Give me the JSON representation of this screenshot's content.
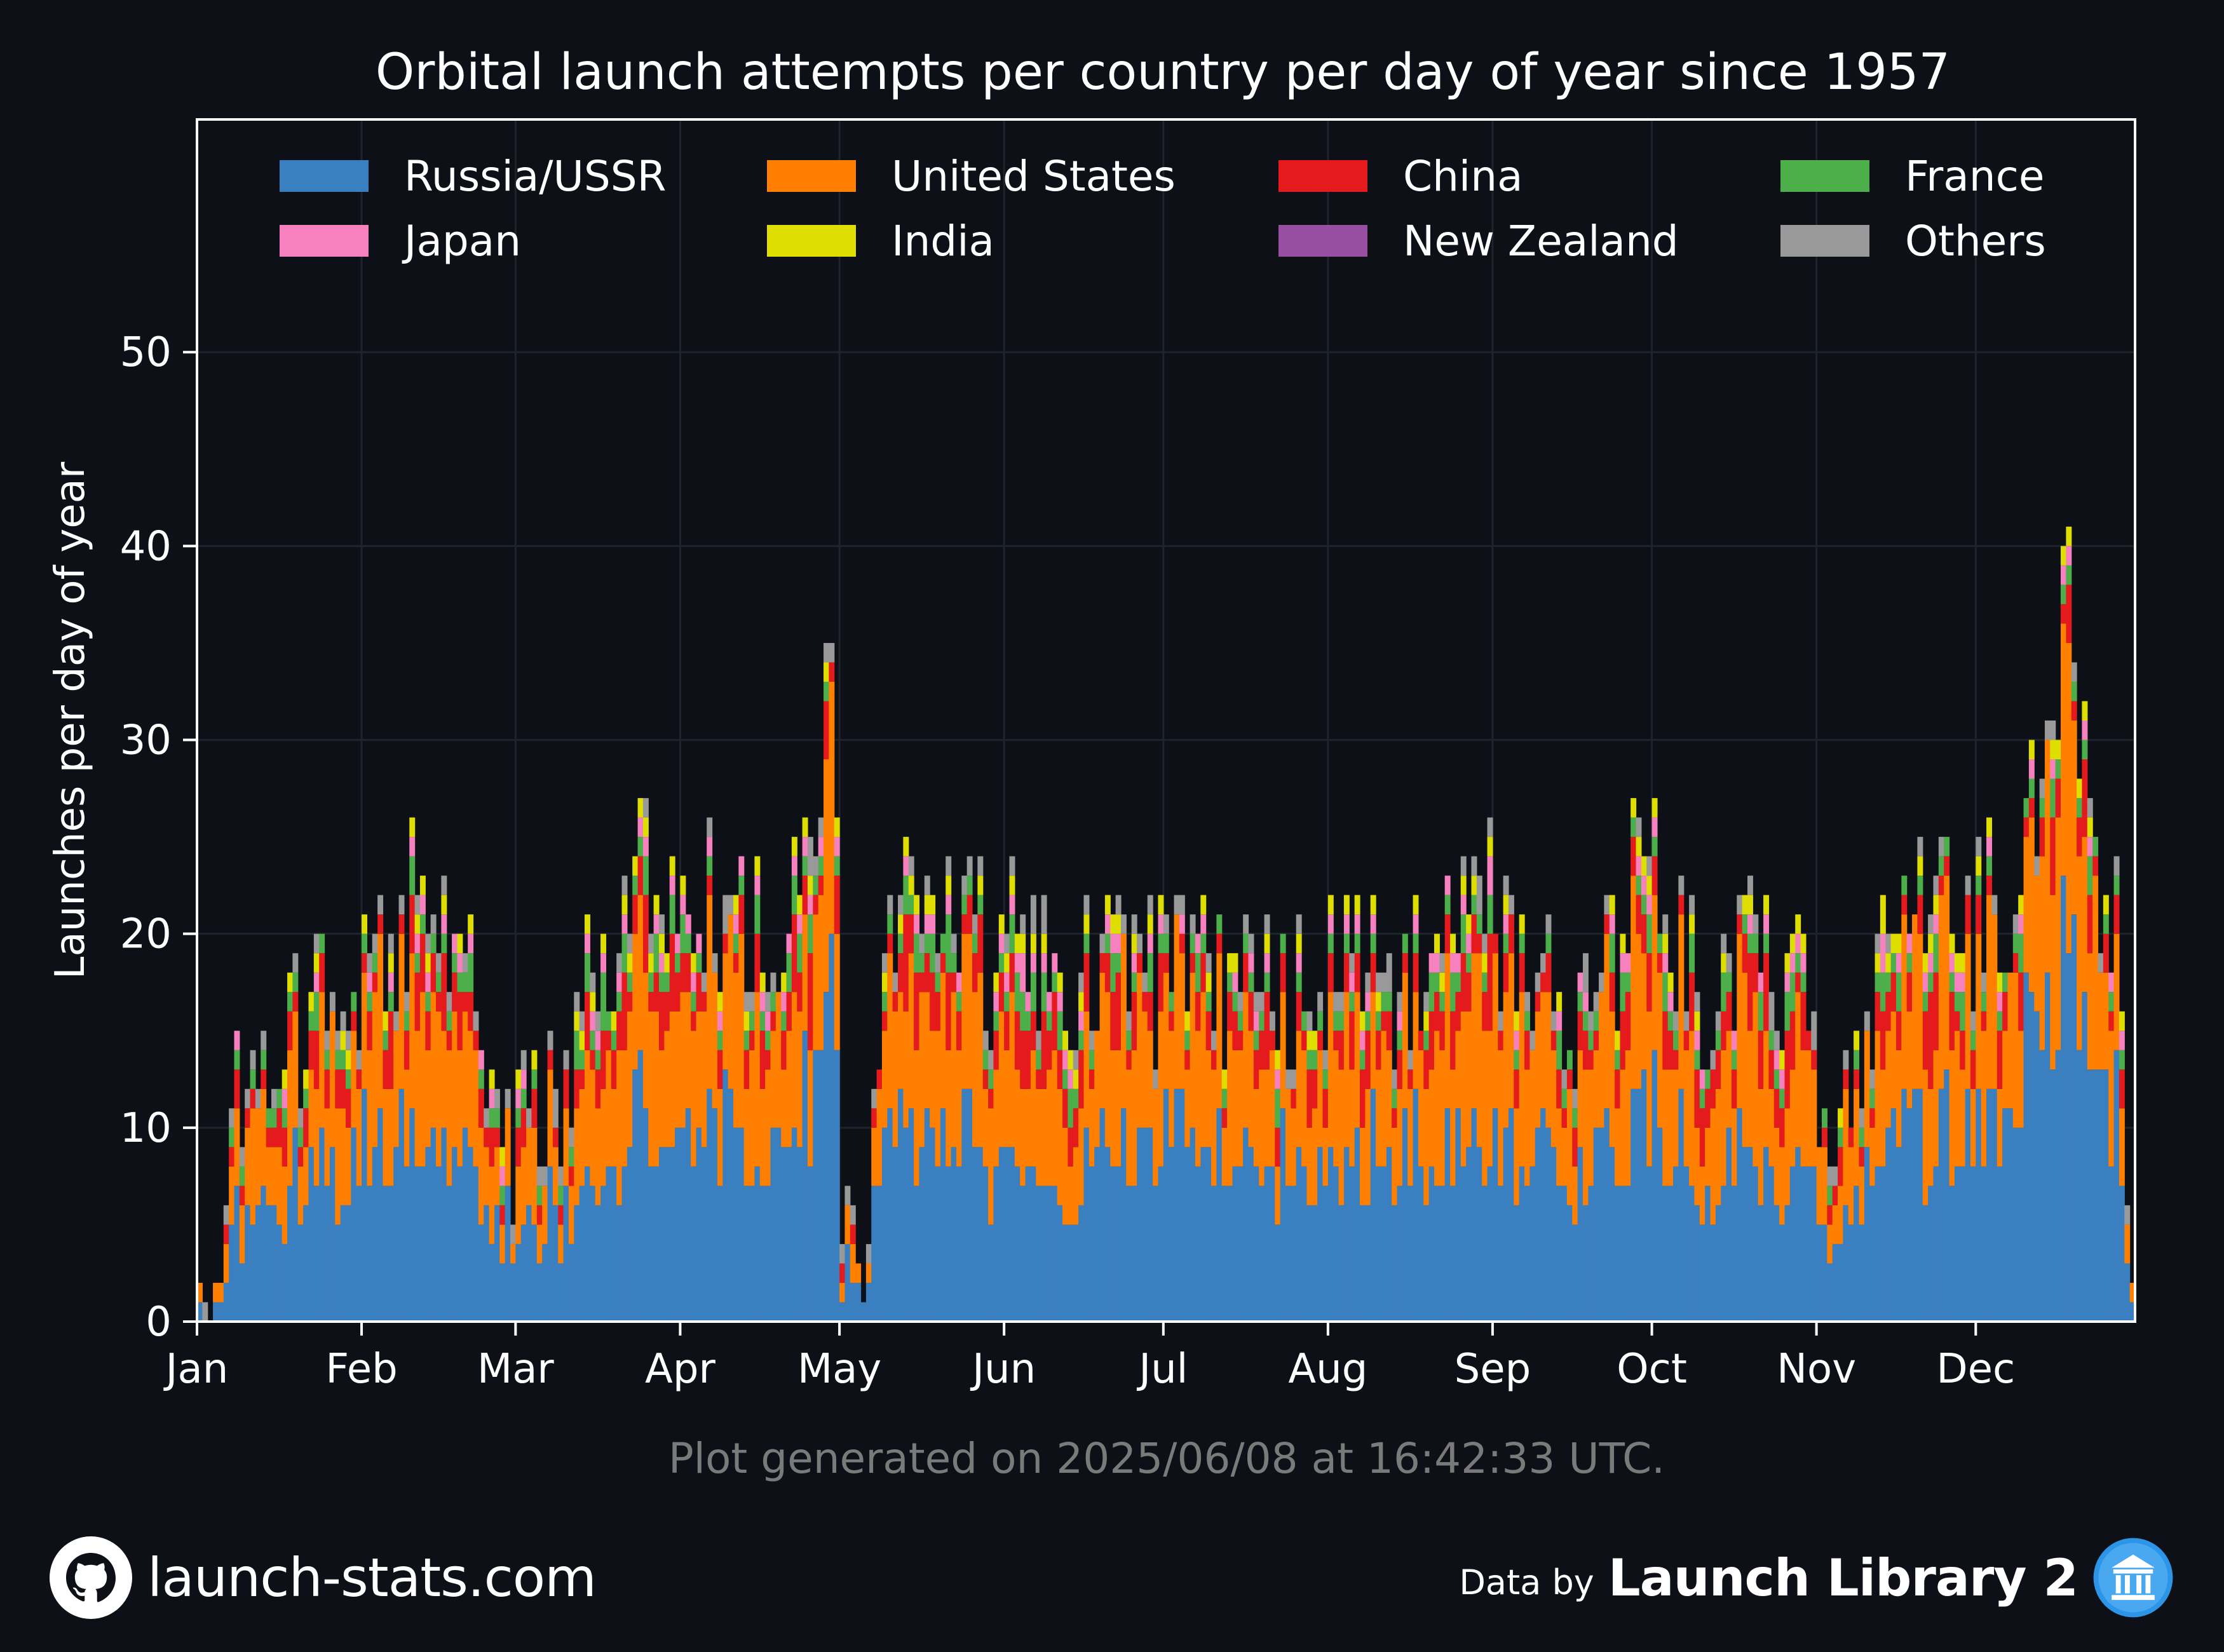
{
  "title": "Orbital launch attempts per country per day of year since 1957",
  "footnote": "Plot generated on 2025/06/08 at 16:42:33 UTC.",
  "branding": {
    "site": "launch-stats.com",
    "site_icon": "github-icon",
    "data_by": "Data by",
    "source": "Launch Library 2",
    "source_icon": "launch-library-logo-icon"
  },
  "colors": {
    "background": "#0d1017",
    "plot_background": "#0d1017",
    "axes": "#ffffff",
    "grid": "#1f242c",
    "footnote": "#7a7a7a"
  },
  "chart_data": {
    "type": "bar",
    "stacked": true,
    "title": "Orbital launch attempts per country per day of year since 1957",
    "xlabel": "",
    "ylabel": "Launches per day of year",
    "ylim": [
      0,
      62
    ],
    "xlim": [
      0,
      365
    ],
    "yticks": [
      0,
      10,
      20,
      30,
      40,
      50
    ],
    "grid": true,
    "legend_position": "top",
    "month_ticks": [
      {
        "label": "Jan",
        "day": 0
      },
      {
        "label": "Feb",
        "day": 31
      },
      {
        "label": "Mar",
        "day": 60
      },
      {
        "label": "Apr",
        "day": 91
      },
      {
        "label": "May",
        "day": 121
      },
      {
        "label": "Jun",
        "day": 152
      },
      {
        "label": "Jul",
        "day": 182
      },
      {
        "label": "Aug",
        "day": 213
      },
      {
        "label": "Sep",
        "day": 244
      },
      {
        "label": "Oct",
        "day": 274
      },
      {
        "label": "Nov",
        "day": 305
      },
      {
        "label": "Dec",
        "day": 335
      }
    ],
    "series": [
      {
        "name": "Russia/USSR",
        "color": "#3a7fbf"
      },
      {
        "name": "United States",
        "color": "#ff7f00"
      },
      {
        "name": "China",
        "color": "#e41a1c"
      },
      {
        "name": "France",
        "color": "#4daf4a"
      },
      {
        "name": "Japan",
        "color": "#f781bf"
      },
      {
        "name": "India",
        "color": "#dede00"
      },
      {
        "name": "New Zealand",
        "color": "#984ea3"
      },
      {
        "name": "Others",
        "color": "#999999"
      }
    ],
    "daily_totals_keypoints": [
      [
        1,
        1
      ],
      [
        3,
        2
      ],
      [
        5,
        6
      ],
      [
        6,
        11
      ],
      [
        8,
        9
      ],
      [
        10,
        14
      ],
      [
        14,
        12
      ],
      [
        17,
        18
      ],
      [
        20,
        13
      ],
      [
        23,
        20
      ],
      [
        28,
        15
      ],
      [
        32,
        19
      ],
      [
        36,
        20
      ],
      [
        41,
        22
      ],
      [
        45,
        19
      ],
      [
        48,
        20
      ],
      [
        52,
        16
      ],
      [
        56,
        12
      ],
      [
        59,
        5
      ],
      [
        61,
        14
      ],
      [
        64,
        8
      ],
      [
        67,
        12
      ],
      [
        72,
        16
      ],
      [
        76,
        20
      ],
      [
        82,
        24
      ],
      [
        88,
        19
      ],
      [
        94,
        20
      ],
      [
        100,
        22
      ],
      [
        106,
        18
      ],
      [
        111,
        20
      ],
      [
        116,
        24
      ],
      [
        119,
        35
      ],
      [
        120,
        26
      ],
      [
        121,
        4
      ],
      [
        124,
        3
      ],
      [
        127,
        12
      ],
      [
        130,
        22
      ],
      [
        134,
        24
      ],
      [
        138,
        22
      ],
      [
        142,
        20
      ],
      [
        146,
        21
      ],
      [
        150,
        18
      ],
      [
        154,
        20
      ],
      [
        160,
        17
      ],
      [
        166,
        18
      ],
      [
        172,
        21
      ],
      [
        178,
        18
      ],
      [
        183,
        17
      ],
      [
        190,
        19
      ],
      [
        196,
        17
      ],
      [
        202,
        16
      ],
      [
        208,
        16
      ],
      [
        214,
        17
      ],
      [
        220,
        18
      ],
      [
        226,
        17
      ],
      [
        231,
        17
      ],
      [
        236,
        20
      ],
      [
        240,
        24
      ],
      [
        244,
        20
      ],
      [
        250,
        17
      ],
      [
        256,
        17
      ],
      [
        262,
        16
      ],
      [
        268,
        20
      ],
      [
        272,
        24
      ],
      [
        276,
        21
      ],
      [
        282,
        17
      ],
      [
        288,
        19
      ],
      [
        294,
        18
      ],
      [
        300,
        20
      ],
      [
        304,
        16
      ],
      [
        307,
        8
      ],
      [
        310,
        14
      ],
      [
        314,
        16
      ],
      [
        320,
        20
      ],
      [
        326,
        21
      ],
      [
        332,
        19
      ],
      [
        338,
        22
      ],
      [
        343,
        22
      ],
      [
        347,
        28
      ],
      [
        350,
        30
      ],
      [
        352,
        41
      ],
      [
        354,
        28
      ],
      [
        357,
        25
      ],
      [
        359,
        22
      ],
      [
        361,
        24
      ],
      [
        363,
        6
      ],
      [
        364,
        2
      ]
    ]
  }
}
